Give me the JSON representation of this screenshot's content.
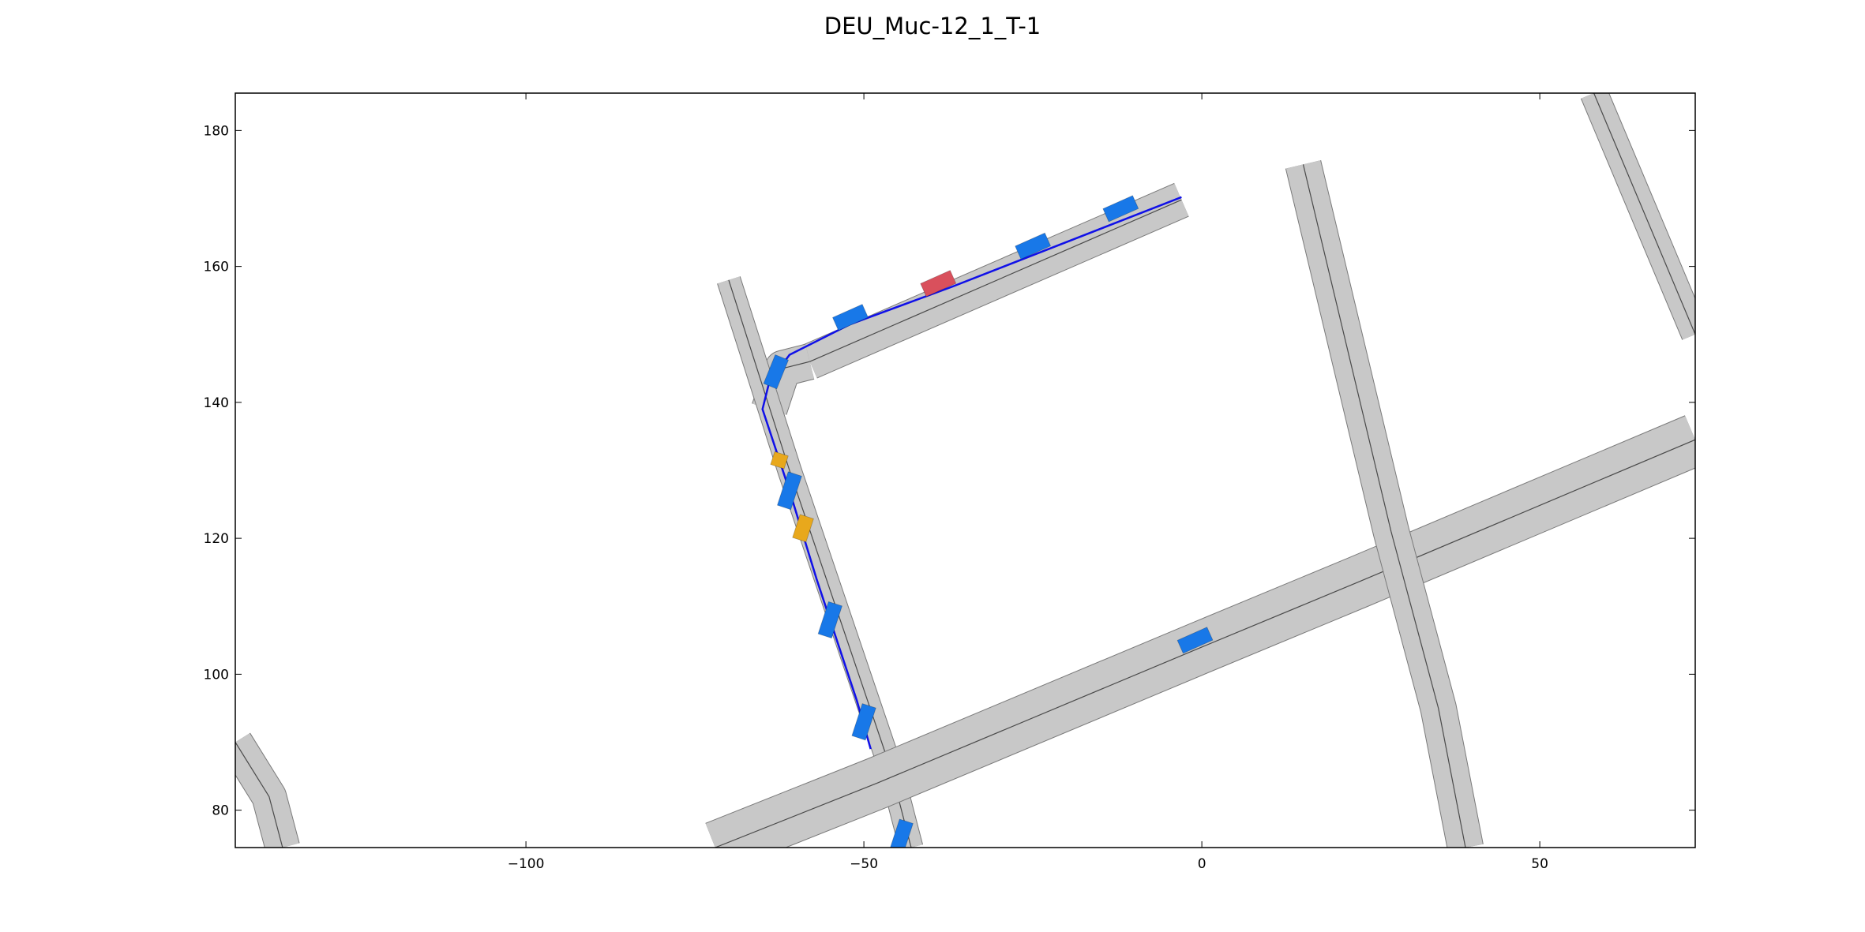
{
  "title": "DEU_Muc-12_1_T-1",
  "chart_data": {
    "type": "scatter",
    "title": "DEU_Muc-12_1_T-1",
    "xlabel": "",
    "ylabel": "",
    "xlim": [
      -143,
      73
    ],
    "ylim": [
      74.5,
      185.5
    ],
    "xticks": [
      -100,
      -50,
      0,
      50
    ],
    "yticks": [
      80,
      100,
      120,
      140,
      160,
      180
    ],
    "grid": false,
    "colors": {
      "road": "#c8c8c8",
      "road_edge": "#7a7a7a",
      "lane_line": "#4a4a4a",
      "route": "#1010e8",
      "ego_vehicle": "#d9505c",
      "other_vehicle": "#1878e8",
      "highlight_vehicle": "#e8a81c"
    },
    "roads": [
      {
        "name": "north-segment",
        "width": 5.2,
        "points": [
          [
            -3,
            169.8
          ],
          [
            -58,
            146
          ]
        ]
      },
      {
        "name": "upper-curve",
        "width": 5.2,
        "points": [
          [
            -58,
            146
          ],
          [
            -62,
            145
          ],
          [
            -64,
            139
          ]
        ]
      },
      {
        "name": "west-vertical",
        "width": 3.4,
        "points": [
          [
            -70,
            158
          ],
          [
            -61,
            130
          ],
          [
            -46,
            86
          ],
          [
            -43,
            74.5
          ]
        ]
      },
      {
        "name": "main-diagonal",
        "width": 7.6,
        "points": [
          [
            -72,
            74.5
          ],
          [
            -48,
            84
          ],
          [
            0,
            104
          ],
          [
            23,
            113.5
          ],
          [
            73,
            134.5
          ]
        ]
      },
      {
        "name": "east-vertical",
        "width": 5.2,
        "points": [
          [
            15,
            175
          ],
          [
            28,
            121
          ],
          [
            35,
            95
          ],
          [
            39,
            74.5
          ]
        ]
      },
      {
        "name": "northeast-road",
        "width": 4.0,
        "points": [
          [
            58,
            185.5
          ],
          [
            73,
            150
          ]
        ]
      },
      {
        "name": "southwest-curve",
        "width": 5.0,
        "points": [
          [
            -143,
            90
          ],
          [
            -138,
            82
          ],
          [
            -136,
            74.5
          ]
        ]
      }
    ],
    "route": [
      [
        -3,
        170.2
      ],
      [
        -37,
        157
      ],
      [
        -52,
        151.5
      ],
      [
        -61,
        147
      ],
      [
        -64,
        143
      ],
      [
        -65,
        139
      ],
      [
        -61,
        127
      ],
      [
        -57,
        114
      ],
      [
        -51,
        96
      ],
      [
        -49,
        89
      ]
    ],
    "vehicles": [
      {
        "role": "ego",
        "x": -39,
        "y": 157.5,
        "length": 4.8,
        "width": 2.1,
        "angle": 24
      },
      {
        "role": "other",
        "x": -52,
        "y": 152.5,
        "length": 4.8,
        "width": 2.1,
        "angle": 24
      },
      {
        "role": "other",
        "x": -25,
        "y": 163,
        "length": 4.8,
        "width": 2.1,
        "angle": 24
      },
      {
        "role": "other",
        "x": -12,
        "y": 168.5,
        "length": 4.8,
        "width": 2.1,
        "angle": 24
      },
      {
        "role": "other",
        "x": -63,
        "y": 144.5,
        "length": 4.6,
        "width": 2.1,
        "angle": 68
      },
      {
        "role": "other",
        "x": -61,
        "y": 127,
        "length": 5.2,
        "width": 2.1,
        "angle": 72
      },
      {
        "role": "highlight",
        "x": -62.5,
        "y": 131.5,
        "length": 2.0,
        "width": 2.1,
        "angle": 72
      },
      {
        "role": "highlight",
        "x": -59,
        "y": 121.5,
        "length": 3.6,
        "width": 2.1,
        "angle": 72
      },
      {
        "role": "other",
        "x": -55,
        "y": 108,
        "length": 5.0,
        "width": 2.1,
        "angle": 72
      },
      {
        "role": "other",
        "x": -50,
        "y": 93,
        "length": 5.0,
        "width": 2.1,
        "angle": 72
      },
      {
        "role": "other",
        "x": -44.5,
        "y": 76,
        "length": 5.0,
        "width": 2.1,
        "angle": 72
      },
      {
        "role": "other",
        "x": -1,
        "y": 105,
        "length": 4.8,
        "width": 2.1,
        "angle": 24
      }
    ]
  }
}
